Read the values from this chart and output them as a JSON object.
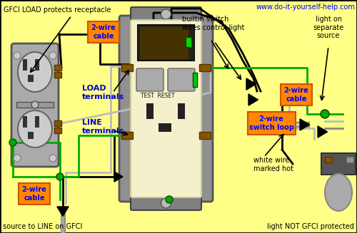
{
  "bg_color": "#FFFF88",
  "border_color": "#000000",
  "title_url": "www.do-it-yourself-help.com",
  "title_color": "#0000FF",
  "text_color": "#000000",
  "blue_label_color": "#0000CC",
  "orange_box_color": "#FF8800",
  "green_wire": "#00AA00",
  "black_wire": "#000000",
  "white_wire": "#BBBBBB",
  "gray_color": "#888888",
  "brown_color": "#885500",
  "top_label": "GFCI LOAD protects receptacle",
  "bottom_left_label": "source to LINE on GFCI",
  "bottom_right_label": "light NOT GFCI protected",
  "load_label": "LOAD\nterminals",
  "line_label": "LINE\nterminals",
  "builtin_label": "builtin switch\nwires control light",
  "light_on_label": "light on\nseparate\nsource",
  "white_wire_label": "white wire\nmarked hot",
  "sw_loop_label": "2-wire\nswitch loop",
  "cable_label": "2-wire\ncable"
}
